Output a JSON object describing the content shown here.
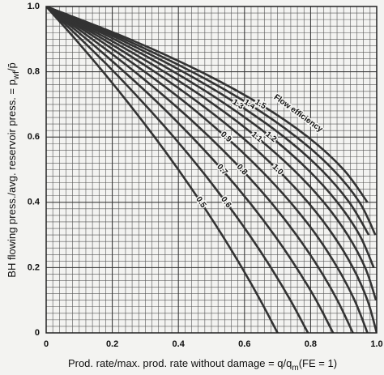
{
  "chart_data": {
    "type": "line",
    "xlabel": {
      "text": "Prod. rate/max. prod. rate without damage = q/q",
      "sub": "m",
      "tail": "(FE = 1)"
    },
    "ylabel": {
      "text": "BH flowing press./avg. reservoir press. = p",
      "sub": "wf",
      "tail": "/p̄"
    },
    "annotation": "Flow efficiency",
    "xlim": [
      0,
      1
    ],
    "ylim": [
      0,
      1
    ],
    "xticks": [
      0,
      0.2,
      0.4,
      0.6,
      0.8,
      {
        "value": 1,
        "label": "1.0"
      }
    ],
    "yticks": [
      0,
      0.2,
      0.4,
      0.6,
      0.8,
      {
        "value": 1,
        "label": "1.0"
      }
    ],
    "grid": true,
    "grid_spacing": 0.02,
    "color": "#333333",
    "series": [
      {
        "name": "0.5",
        "x": [
          0,
          0.088,
          0.172,
          0.252,
          0.328,
          0.4,
          0.468,
          0.532,
          0.592,
          0.648,
          0.7
        ],
        "values": [
          1,
          0.9,
          0.8,
          0.7,
          0.6,
          0.5,
          0.4,
          0.3,
          0.2,
          0.1,
          0
        ]
      },
      {
        "name": "0.6",
        "x": [
          0,
          0.105,
          0.205,
          0.298,
          0.386,
          0.468,
          0.544,
          0.615,
          0.68,
          0.739,
          0.792
        ],
        "values": [
          1,
          0.9,
          0.8,
          0.7,
          0.6,
          0.5,
          0.4,
          0.3,
          0.2,
          0.1,
          0
        ]
      },
      {
        "name": "0.7",
        "x": [
          0,
          0.122,
          0.236,
          0.343,
          0.441,
          0.532,
          0.615,
          0.69,
          0.757,
          0.817,
          0.868
        ],
        "values": [
          1,
          0.9,
          0.8,
          0.7,
          0.6,
          0.5,
          0.4,
          0.3,
          0.2,
          0.1,
          0
        ]
      },
      {
        "name": "0.8",
        "x": [
          0,
          0.139,
          0.268,
          0.386,
          0.494,
          0.592,
          0.68,
          0.757,
          0.824,
          0.881,
          0.928
        ],
        "values": [
          1,
          0.9,
          0.8,
          0.7,
          0.6,
          0.5,
          0.4,
          0.3,
          0.2,
          0.1,
          0
        ]
      },
      {
        "name": "0.9",
        "x": [
          0,
          0.156,
          0.298,
          0.428,
          0.544,
          0.648,
          0.739,
          0.817,
          0.881,
          0.933,
          0.972
        ],
        "values": [
          1,
          0.9,
          0.8,
          0.7,
          0.6,
          0.5,
          0.4,
          0.3,
          0.2,
          0.1,
          0
        ]
      },
      {
        "name": "1.0",
        "x": [
          0,
          0.172,
          0.328,
          0.468,
          0.592,
          0.7,
          0.792,
          0.868,
          0.928,
          0.972,
          1
        ],
        "values": [
          1,
          0.9,
          0.8,
          0.7,
          0.6,
          0.5,
          0.4,
          0.3,
          0.2,
          0.1,
          0
        ]
      },
      {
        "name": "1.1",
        "x": [
          0,
          0.188,
          0.357,
          0.507,
          0.637,
          0.748,
          0.84,
          0.912,
          0.965,
          0.998
        ],
        "values": [
          1,
          0.9,
          0.8,
          0.7,
          0.6,
          0.5,
          0.4,
          0.3,
          0.2,
          0.1
        ]
      },
      {
        "name": "1.2",
        "x": [
          0,
          0.205,
          0.386,
          0.544,
          0.68,
          0.792,
          0.881,
          0.948,
          0.991
        ],
        "values": [
          1,
          0.9,
          0.8,
          0.7,
          0.6,
          0.5,
          0.4,
          0.3,
          0.2
        ]
      },
      {
        "name": "1.3",
        "x": [
          0,
          0.221,
          0.414,
          0.58,
          0.72,
          0.832,
          0.917,
          0.976
        ],
        "values": [
          1,
          0.9,
          0.8,
          0.7,
          0.6,
          0.5,
          0.4,
          0.3
        ]
      },
      {
        "name": "1.4",
        "x": [
          0,
          0.236,
          0.441,
          0.615,
          0.757,
          0.868,
          0.948,
          0.996
        ],
        "values": [
          1,
          0.9,
          0.8,
          0.7,
          0.6,
          0.5,
          0.4,
          0.3
        ]
      },
      {
        "name": "1.5",
        "x": [
          0,
          0.252,
          0.468,
          0.648,
          0.792,
          0.9,
          0.972
        ],
        "values": [
          1,
          0.9,
          0.8,
          0.7,
          0.6,
          0.5,
          0.4
        ]
      }
    ]
  }
}
